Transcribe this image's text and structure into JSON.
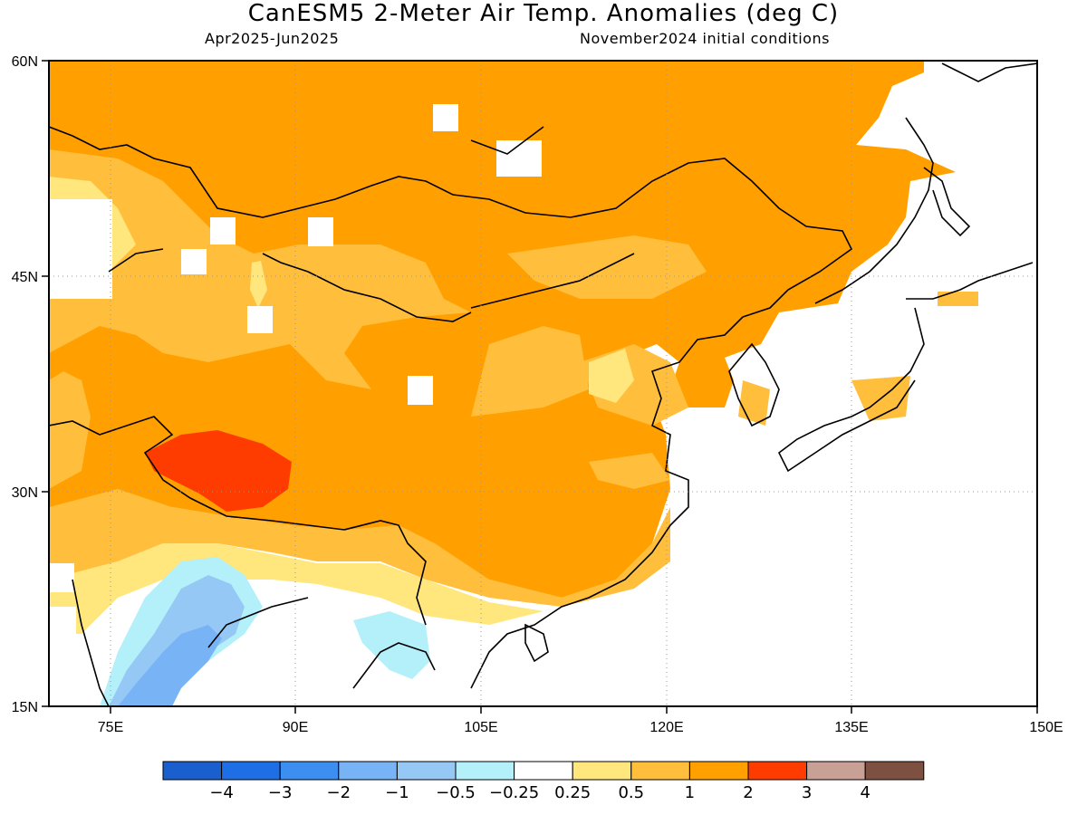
{
  "title": "CanESM5 2-Meter Air Temp. Anomalies (deg C)",
  "subtitle_left": "Apr2025-Jun2025",
  "subtitle_right": "November2024 initial conditions",
  "map": {
    "type": "filled-contour-map",
    "lon_range": [
      70,
      150
    ],
    "lat_range": [
      15,
      60
    ],
    "lat_ticks": [
      {
        "value": 60,
        "label": "60N"
      },
      {
        "value": 45,
        "label": "45N"
      },
      {
        "value": 30,
        "label": "30N"
      },
      {
        "value": 15,
        "label": "15N"
      }
    ],
    "lon_ticks": [
      {
        "value": 75,
        "label": "75E"
      },
      {
        "value": 90,
        "label": "90E"
      },
      {
        "value": 105,
        "label": "105E"
      },
      {
        "value": 120,
        "label": "120E"
      },
      {
        "value": 135,
        "label": "135E"
      },
      {
        "value": 150,
        "label": "150E"
      }
    ],
    "grid": true
  },
  "colorbar": {
    "colors": [
      "#1a5fcd",
      "#1e6ee6",
      "#3c8ef0",
      "#78b4f5",
      "#96c8f5",
      "#b4f0fa",
      "#ffffff",
      "#ffe67d",
      "#ffbe3c",
      "#ff9f00",
      "#ff3c00",
      "#c8a096",
      "#7d5041"
    ],
    "labels": [
      "-4",
      "-3",
      "-2",
      "-1",
      "-0.5",
      "-0.25",
      "0.25",
      "0.5",
      "1",
      "2",
      "3",
      "4"
    ]
  }
}
